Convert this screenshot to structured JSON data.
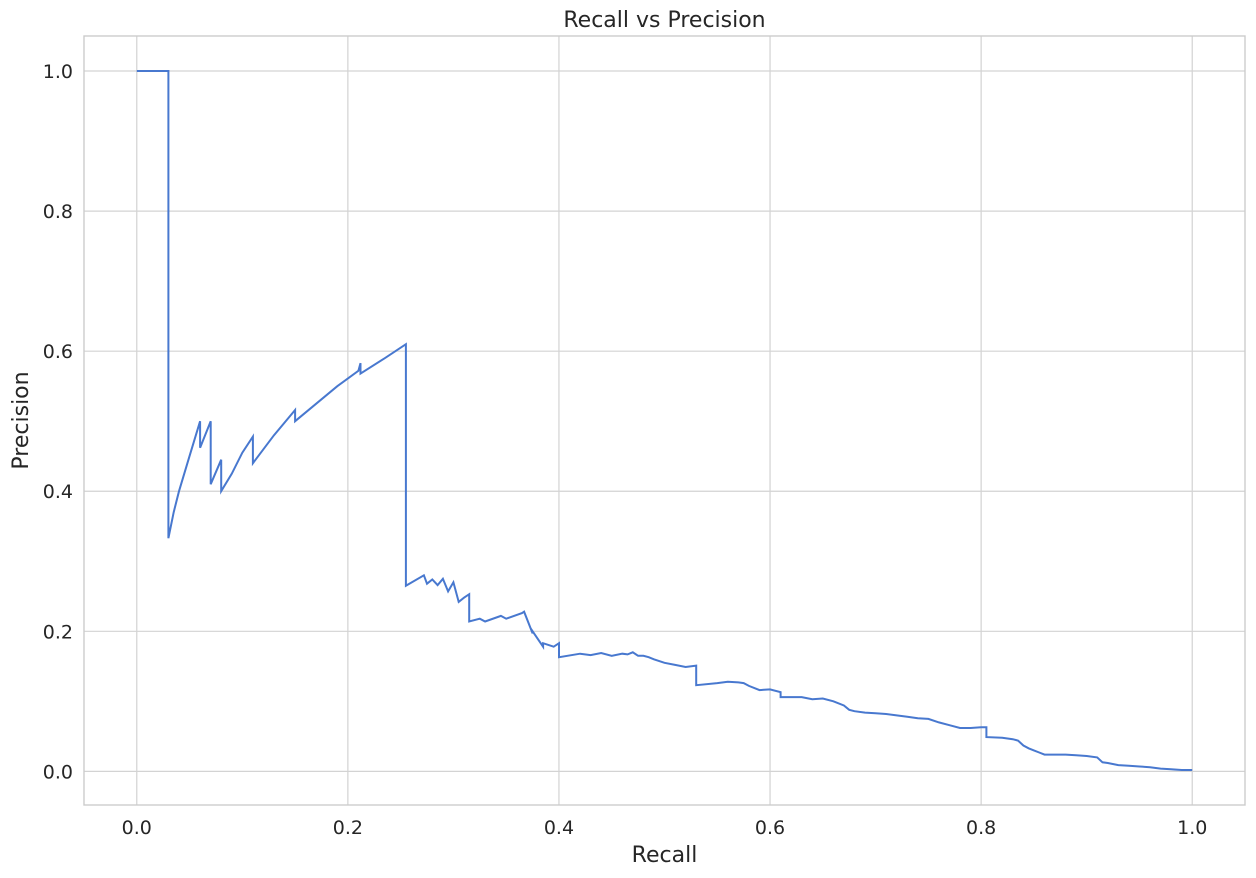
{
  "chart_data": {
    "type": "line",
    "title": "Recall vs Precision",
    "xlabel": "Recall",
    "ylabel": "Precision",
    "xlim": [
      -0.05,
      1.05
    ],
    "ylim": [
      -0.048,
      1.05
    ],
    "xticks": [
      0.0,
      0.2,
      0.4,
      0.6,
      0.8,
      1.0
    ],
    "xtick_labels": [
      "0.0",
      "0.2",
      "0.4",
      "0.6",
      "0.8",
      "1.0"
    ],
    "yticks": [
      0.0,
      0.2,
      0.4,
      0.6,
      0.8,
      1.0
    ],
    "ytick_labels": [
      "0.0",
      "0.2",
      "0.4",
      "0.6",
      "0.8",
      "1.0"
    ],
    "grid": true,
    "colors": {
      "line": "#4878cf",
      "grid": "#d3d3d3",
      "frame": "#cccccc",
      "text": "#262626"
    },
    "series": [
      {
        "x": [
          0.0,
          0.03,
          0.03,
          0.035,
          0.04,
          0.05,
          0.06,
          0.06,
          0.07,
          0.07,
          0.08,
          0.08,
          0.09,
          0.1,
          0.11,
          0.11,
          0.13,
          0.15,
          0.15,
          0.17,
          0.19,
          0.21,
          0.212,
          0.212,
          0.235,
          0.255,
          0.255,
          0.272,
          0.275,
          0.28,
          0.285,
          0.29,
          0.295,
          0.3,
          0.305,
          0.31,
          0.315,
          0.315,
          0.325,
          0.33,
          0.345,
          0.35,
          0.365,
          0.367,
          0.375,
          0.375,
          0.385,
          0.385,
          0.395,
          0.4,
          0.4,
          0.42,
          0.43,
          0.44,
          0.45,
          0.46,
          0.465,
          0.47,
          0.475,
          0.48,
          0.485,
          0.49,
          0.5,
          0.51,
          0.52,
          0.53,
          0.53,
          0.55,
          0.56,
          0.57,
          0.575,
          0.58,
          0.59,
          0.6,
          0.61,
          0.61,
          0.63,
          0.64,
          0.65,
          0.66,
          0.67,
          0.675,
          0.68,
          0.69,
          0.7,
          0.71,
          0.72,
          0.73,
          0.74,
          0.75,
          0.76,
          0.77,
          0.78,
          0.79,
          0.8,
          0.805,
          0.805,
          0.82,
          0.83,
          0.835,
          0.84,
          0.845,
          0.85,
          0.855,
          0.86,
          0.88,
          0.89,
          0.9,
          0.91,
          0.915,
          0.92,
          0.93,
          0.94,
          0.95,
          0.96,
          0.97,
          0.98,
          0.99,
          1.0
        ],
        "y": [
          1.0,
          1.0,
          0.333,
          0.37,
          0.4,
          0.45,
          0.5,
          0.462,
          0.5,
          0.41,
          0.445,
          0.4,
          0.425,
          0.455,
          0.478,
          0.44,
          0.48,
          0.516,
          0.5,
          0.525,
          0.55,
          0.572,
          0.583,
          0.568,
          0.59,
          0.61,
          0.265,
          0.28,
          0.268,
          0.274,
          0.266,
          0.275,
          0.257,
          0.27,
          0.242,
          0.248,
          0.253,
          0.214,
          0.218,
          0.214,
          0.222,
          0.218,
          0.226,
          0.228,
          0.197,
          0.2,
          0.178,
          0.183,
          0.178,
          0.183,
          0.163,
          0.168,
          0.166,
          0.169,
          0.165,
          0.168,
          0.167,
          0.17,
          0.165,
          0.165,
          0.163,
          0.16,
          0.155,
          0.152,
          0.149,
          0.151,
          0.123,
          0.126,
          0.128,
          0.127,
          0.126,
          0.122,
          0.116,
          0.117,
          0.113,
          0.106,
          0.106,
          0.103,
          0.104,
          0.1,
          0.094,
          0.088,
          0.086,
          0.084,
          0.083,
          0.082,
          0.08,
          0.078,
          0.076,
          0.075,
          0.07,
          0.066,
          0.062,
          0.062,
          0.063,
          0.063,
          0.049,
          0.048,
          0.046,
          0.044,
          0.037,
          0.033,
          0.03,
          0.027,
          0.024,
          0.024,
          0.023,
          0.022,
          0.02,
          0.013,
          0.012,
          0.009,
          0.008,
          0.007,
          0.006,
          0.004,
          0.003,
          0.002,
          0.002
        ]
      }
    ]
  }
}
